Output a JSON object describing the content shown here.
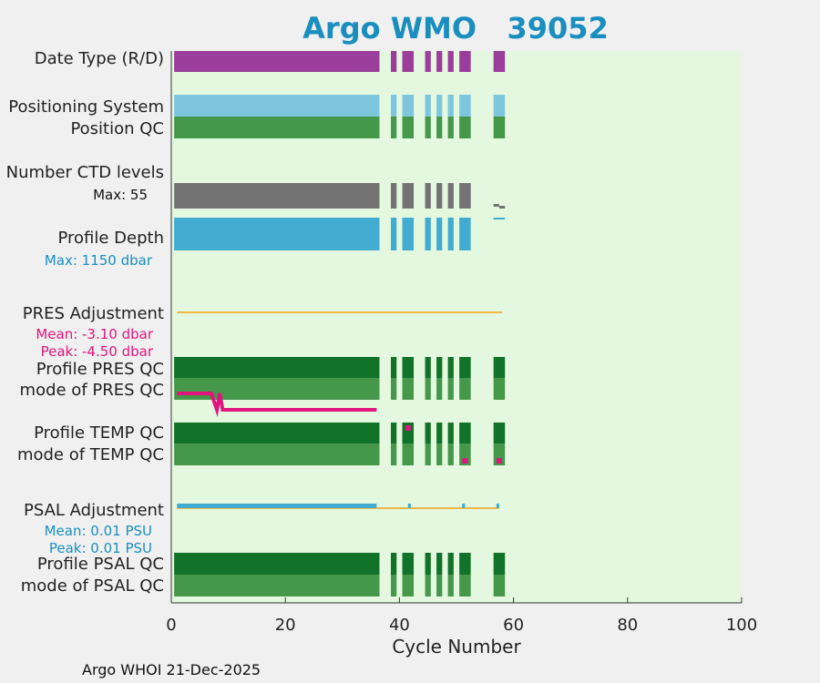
{
  "title_prefix": "Argo WMO",
  "wmo_number": "39052",
  "footer": "Argo WHOI 21-Dec-2025",
  "colors": {
    "plot_bg": "#e4f8e0",
    "date_type": "#9b3d9a",
    "positioning": "#7ec6de",
    "qc_dark": "#117229",
    "qc_mid": "#45974a",
    "ctd_levels": "#737373",
    "profile_depth": "#41abd0",
    "adjust_line": "#f0b844",
    "pink": "#e0157e",
    "blue": "#1a8fbf"
  },
  "rows": {
    "date_type": "Date Type (R/D)",
    "positioning": "Positioning System",
    "position_qc": "Position QC",
    "ctd_levels": "Number CTD levels",
    "profile_depth": "Profile Depth",
    "pres_adjustment": "PRES Adjustment",
    "profile_pres_qc": "Profile PRES QC",
    "mode_pres_qc": "mode of PRES QC",
    "profile_temp_qc": "Profile TEMP QC",
    "mode_temp_qc": "mode of TEMP QC",
    "psal_adjustment": "PSAL Adjustment",
    "profile_psal_qc": "Profile PSAL QC",
    "mode_psal_qc": "mode of PSAL QC"
  },
  "stats": {
    "ctd_max": "Max: 55",
    "depth_max": "Max: 1150 dbar",
    "pres_mean": "Mean: -3.10 dbar",
    "pres_peak": "Peak: -4.50 dbar",
    "psal_mean": "Mean: 0.01 PSU",
    "psal_peak": "Peak: 0.01 PSU"
  },
  "chart_data": {
    "type": "bar",
    "xlabel": "Cycle Number",
    "xlim": [
      0,
      100
    ],
    "xticks": [
      0,
      20,
      40,
      60,
      80,
      100
    ],
    "cycle_segments": [
      [
        0.5,
        36.5
      ],
      [
        38.5,
        39.5
      ],
      [
        40.5,
        42.5
      ],
      [
        44.5,
        45.5
      ],
      [
        46.5,
        47.5
      ],
      [
        48.5,
        49.5
      ],
      [
        50.5,
        52.5
      ],
      [
        56.5,
        58.5
      ]
    ],
    "ctd_segments": [
      [
        0.5,
        36.5
      ],
      [
        38.5,
        39.5
      ],
      [
        40.5,
        42.5
      ],
      [
        44.5,
        45.5
      ],
      [
        46.5,
        47.5
      ],
      [
        48.5,
        49.5
      ],
      [
        50.5,
        52.5
      ]
    ],
    "depth_segments": [
      [
        0.5,
        36.5
      ],
      [
        38.5,
        39.5
      ],
      [
        40.5,
        42.5
      ],
      [
        44.5,
        45.5
      ],
      [
        46.5,
        47.5
      ],
      [
        48.5,
        49.5
      ],
      [
        50.5,
        52.5
      ]
    ],
    "pres_adjustment_x": [
      1,
      58
    ],
    "pres_mode_line": [
      [
        1,
        0
      ],
      [
        7,
        0
      ],
      [
        8,
        -1
      ],
      [
        8.5,
        0
      ],
      [
        9,
        -1
      ],
      [
        10,
        -1
      ],
      [
        36,
        -1
      ]
    ],
    "temp_mode_flags": [
      41.5,
      51.5,
      57.5
    ],
    "psal_adjustment_x": [
      1,
      57.5
    ],
    "psal_adjust_marks": [
      [
        1,
        36
      ],
      [
        41.5,
        42
      ],
      [
        51,
        51.5
      ],
      [
        57,
        57.5
      ]
    ]
  }
}
